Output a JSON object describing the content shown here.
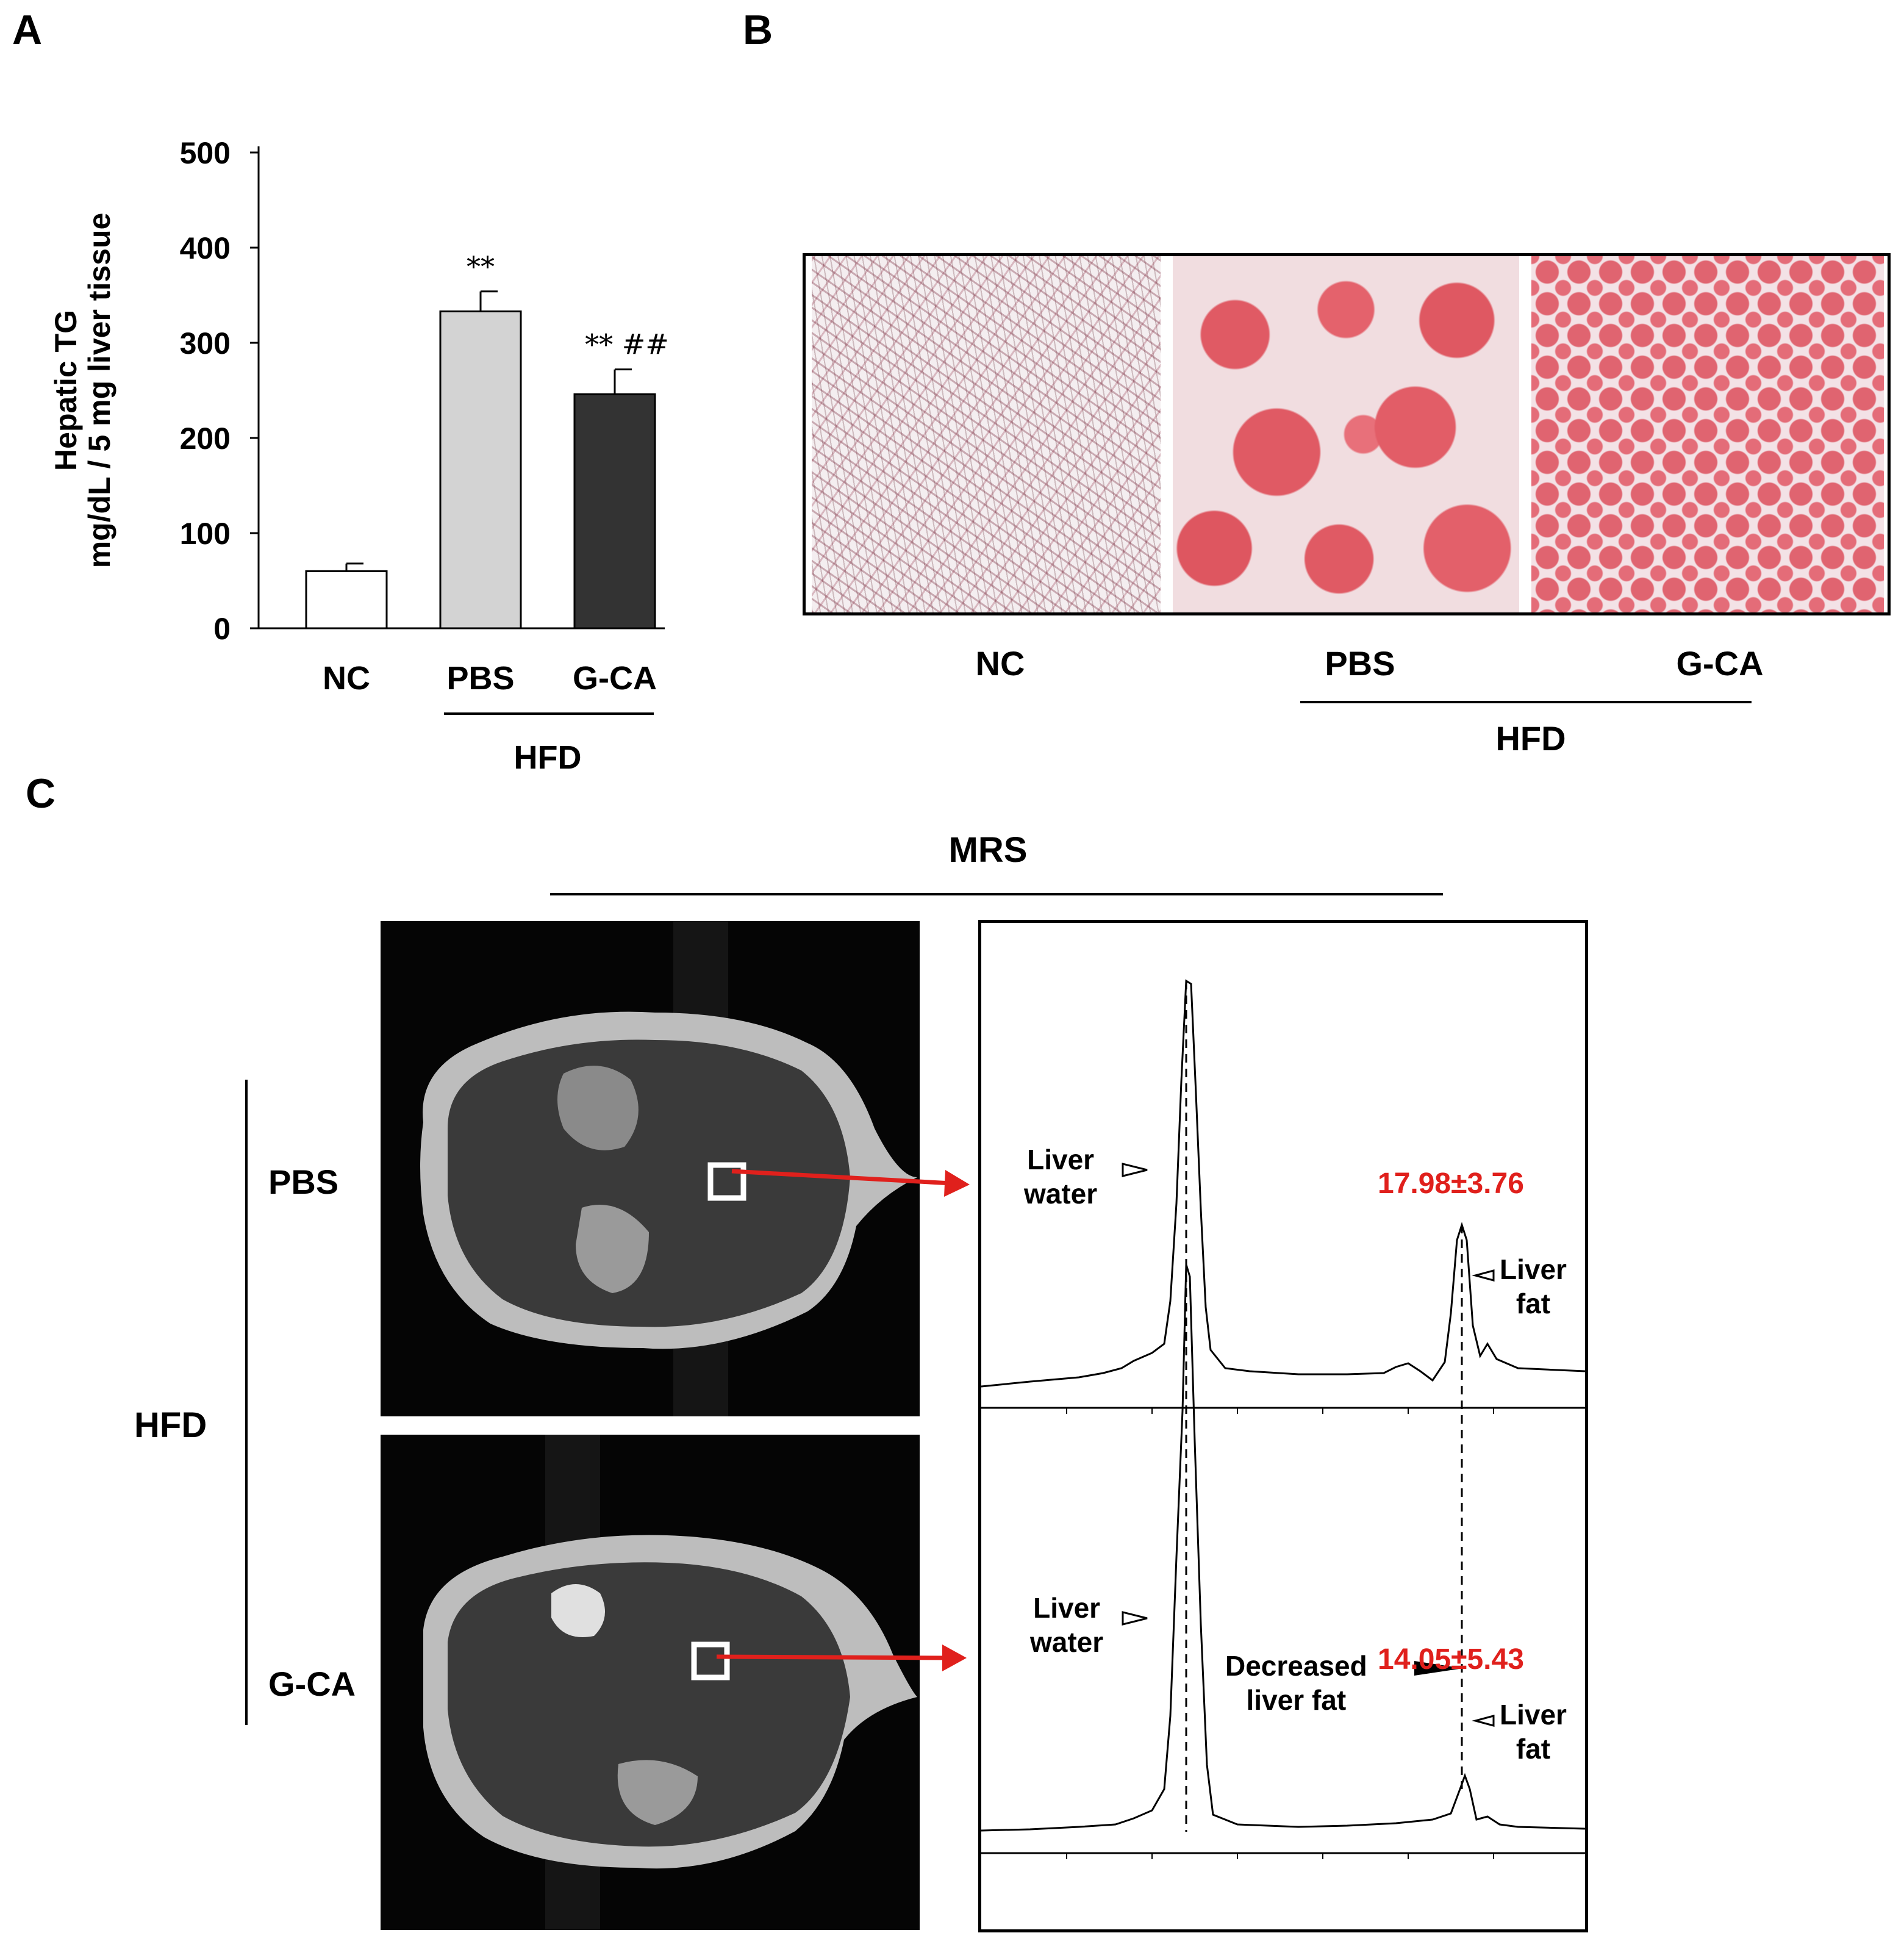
{
  "panels": {
    "a": "A",
    "b": "B",
    "c": "C"
  },
  "chart_data": {
    "type": "bar",
    "ylabel_line1": "Hepatic TG",
    "ylabel_line2": "mg/dL / 5 mg liver tissue",
    "ylim": [
      0,
      500
    ],
    "yticks": [
      "0",
      "100",
      "200",
      "300",
      "400",
      "500"
    ],
    "categories": [
      "NC",
      "PBS",
      "G-CA"
    ],
    "values": [
      60,
      333,
      246
    ],
    "errors": [
      8,
      21,
      26
    ],
    "annotations": [
      "",
      "**",
      "** ##"
    ],
    "bar_colors": [
      "#ffffff",
      "#d3d3d3",
      "#333333"
    ],
    "group_label": "HFD"
  },
  "histology": {
    "labels": [
      "NC",
      "PBS",
      "G-CA"
    ],
    "group_label": "HFD",
    "stain_color": "#e05a64"
  },
  "mrs": {
    "title": "MRS",
    "group_label": "HFD",
    "rows": [
      {
        "label": "PBS",
        "water_label": "Liver\nwater",
        "fat_label": "Liver\nfat",
        "fat_percent": "17.98±3.76",
        "decreased_label": ""
      },
      {
        "label": "G-CA",
        "water_label": "Liver\nwater",
        "fat_label": "Liver\nfat",
        "fat_percent": "14.05±5.43",
        "decreased_label": "Decreased\nliver fat"
      }
    ],
    "arrow_color": "#e0201c"
  }
}
